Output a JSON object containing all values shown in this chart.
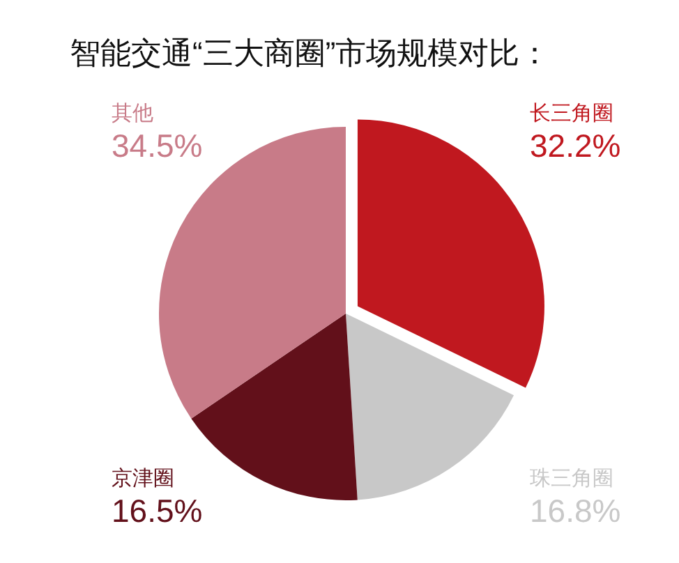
{
  "chart_data": {
    "type": "pie",
    "title": "智能交通“三大商圈”市场规模对比：",
    "categories": [
      "长三角圈",
      "珠三角圈",
      "京津圈",
      "其他"
    ],
    "values": [
      32.2,
      16.8,
      16.5,
      34.5
    ],
    "value_labels": [
      "32.2%",
      "16.8%",
      "16.5%",
      "34.5%"
    ],
    "colors": [
      "#c0181f",
      "#c8c8c8",
      "#62101a",
      "#c87b88"
    ],
    "legend": false
  }
}
